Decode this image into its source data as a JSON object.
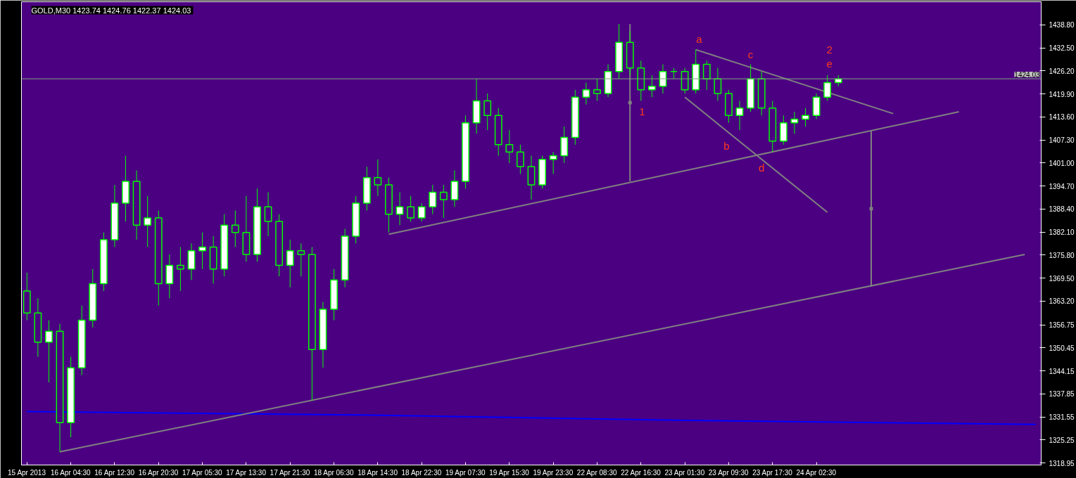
{
  "chart_data": {
    "type": "candlestick",
    "title": "GOLD,M30  1423.74 1424.76 1422.37 1424.03",
    "color": "#00ff00",
    "categories": [
      "15 Apr 2013",
      null,
      null,
      null,
      "16 Apr 04:30",
      null,
      null,
      null,
      "16 Apr 12:30",
      null,
      null,
      null,
      "16 Apr 20:30",
      null,
      null,
      null,
      "17 Apr 05:30",
      null,
      null,
      null,
      "17 Apr 13:30",
      null,
      null,
      null,
      "17 Apr 21:30",
      null,
      null,
      null,
      "18 Apr 06:30",
      null,
      null,
      null,
      "18 Apr 14:30",
      null,
      null,
      null,
      "18 Apr 22:30",
      null,
      null,
      null,
      "19 Apr 07:30",
      null,
      null,
      null,
      "19 Apr 15:30",
      null,
      null,
      null,
      "19 Apr 23:30",
      null,
      null,
      null,
      "22 Apr 08:30",
      null,
      null,
      null,
      "22 Apr 16:30",
      null,
      null,
      null,
      "23 Apr 01:30",
      null,
      null,
      null,
      "23 Apr 09:30",
      null,
      null,
      null,
      "23 Apr 17:30",
      null,
      null,
      null,
      "24 Apr 02:30",
      null,
      null,
      null,
      null,
      null,
      null,
      null,
      null,
      null,
      null,
      null,
      null,
      null,
      null,
      null,
      null,
      null,
      null,
      null,
      null
    ],
    "ohlc": [
      [
        1366,
        1371,
        1358,
        1360
      ],
      [
        1360,
        1364,
        1348,
        1352
      ],
      [
        1352,
        1358,
        1341,
        1355
      ],
      [
        1355,
        1357,
        1322,
        1330
      ],
      [
        1330,
        1348,
        1326,
        1345
      ],
      [
        1345,
        1362,
        1343,
        1358
      ],
      [
        1358,
        1372,
        1356,
        1368
      ],
      [
        1368,
        1382,
        1366,
        1380
      ],
      [
        1380,
        1395,
        1378,
        1390
      ],
      [
        1390,
        1403,
        1385,
        1396
      ],
      [
        1396,
        1399,
        1380,
        1384
      ],
      [
        1384,
        1392,
        1378,
        1386
      ],
      [
        1386,
        1388,
        1362,
        1368
      ],
      [
        1368,
        1376,
        1364,
        1373
      ],
      [
        1373,
        1378,
        1366,
        1372
      ],
      [
        1372,
        1379,
        1369,
        1377
      ],
      [
        1377,
        1382,
        1372,
        1378
      ],
      [
        1378,
        1381,
        1368,
        1372
      ],
      [
        1372,
        1387,
        1370,
        1384
      ],
      [
        1384,
        1388,
        1378,
        1382
      ],
      [
        1382,
        1392,
        1374,
        1376
      ],
      [
        1376,
        1394,
        1374,
        1389
      ],
      [
        1389,
        1393,
        1381,
        1385
      ],
      [
        1385,
        1387,
        1370,
        1373
      ],
      [
        1373,
        1380,
        1367,
        1377
      ],
      [
        1377,
        1379,
        1370,
        1376
      ],
      [
        1376,
        1378,
        1336,
        1350
      ],
      [
        1350,
        1363,
        1345,
        1361
      ],
      [
        1361,
        1372,
        1358,
        1369
      ],
      [
        1369,
        1383,
        1367,
        1381
      ],
      [
        1381,
        1392,
        1379,
        1390
      ],
      [
        1390,
        1400,
        1388,
        1397
      ],
      [
        1397,
        1402,
        1392,
        1395
      ],
      [
        1395,
        1397,
        1382,
        1387
      ],
      [
        1387,
        1393,
        1384,
        1389
      ],
      [
        1389,
        1392,
        1385,
        1386
      ],
      [
        1386,
        1390,
        1385,
        1389
      ],
      [
        1389,
        1395,
        1387,
        1393
      ],
      [
        1393,
        1395,
        1386,
        1391
      ],
      [
        1391,
        1399,
        1389,
        1396
      ],
      [
        1396,
        1414,
        1394,
        1412
      ],
      [
        1412,
        1424,
        1409,
        1418
      ],
      [
        1418,
        1420,
        1410,
        1414
      ],
      [
        1414,
        1416,
        1403,
        1406
      ],
      [
        1406,
        1410,
        1401,
        1404
      ],
      [
        1404,
        1406,
        1398,
        1400
      ],
      [
        1400,
        1403,
        1391,
        1395
      ],
      [
        1395,
        1403,
        1394,
        1402
      ],
      [
        1402,
        1404,
        1398,
        1403
      ],
      [
        1403,
        1411,
        1401,
        1408
      ],
      [
        1408,
        1421,
        1406,
        1419
      ],
      [
        1419,
        1423,
        1417,
        1421
      ],
      [
        1421,
        1424,
        1418,
        1420
      ],
      [
        1420,
        1428,
        1419,
        1426
      ],
      [
        1426,
        1439,
        1424,
        1434
      ],
      [
        1434,
        1437,
        1425,
        1427
      ],
      [
        1427,
        1429,
        1418,
        1421
      ],
      [
        1421,
        1425,
        1419,
        1422
      ],
      [
        1422,
        1428,
        1420,
        1426
      ],
      [
        1426,
        1427,
        1424,
        1426
      ],
      [
        1426,
        1427,
        1420,
        1421
      ],
      [
        1421,
        1432,
        1420,
        1428
      ],
      [
        1428,
        1429,
        1421,
        1424
      ],
      [
        1424,
        1427,
        1418,
        1420
      ],
      [
        1420,
        1421,
        1412,
        1414
      ],
      [
        1414,
        1418,
        1410,
        1416
      ],
      [
        1416,
        1428,
        1415,
        1424
      ],
      [
        1424,
        1426,
        1414,
        1416
      ],
      [
        1416,
        1418,
        1404,
        1407
      ],
      [
        1407,
        1414,
        1406,
        1412
      ],
      [
        1412,
        1415,
        1409,
        1413
      ],
      [
        1413,
        1416,
        1411,
        1414
      ],
      [
        1414,
        1420,
        1413,
        1419
      ],
      [
        1419,
        1425,
        1418,
        1423
      ],
      [
        1423,
        1425,
        1422,
        1424
      ],
      null,
      null,
      null,
      null,
      null,
      null,
      null,
      null,
      null,
      null,
      null,
      null,
      null,
      null,
      null,
      null,
      null,
      null
    ],
    "series": [
      {
        "type": "line",
        "color": "#0000ff",
        "values": [
          1333,
          null,
          null,
          null,
          null,
          null,
          null,
          null,
          null,
          null,
          null,
          null,
          null,
          null,
          null,
          null,
          null,
          null,
          null,
          null,
          null,
          null,
          null,
          null,
          null,
          null,
          null,
          null,
          null,
          null,
          1332.1,
          null,
          null,
          null,
          null,
          null,
          null,
          null,
          null,
          null,
          null,
          null,
          null,
          null,
          null,
          null,
          null,
          null,
          null,
          null,
          null,
          null,
          null,
          null,
          null,
          null,
          null,
          null,
          null,
          null,
          1330.6,
          null,
          null,
          null,
          null,
          null,
          null,
          null,
          null,
          null,
          null,
          null,
          null,
          null,
          null,
          null,
          null,
          null,
          null,
          null,
          null,
          null,
          null,
          null,
          null,
          null,
          null,
          null,
          null,
          null,
          null,
          null,
          1329.5
        ]
      },
      {
        "type": "line",
        "color": "#808080",
        "values": [
          null,
          null,
          null,
          1322,
          null,
          null,
          null,
          null,
          null,
          null,
          null,
          null,
          null,
          null,
          null,
          null,
          null,
          null,
          null,
          null,
          null,
          null,
          null,
          null,
          null,
          null,
          null,
          null,
          null,
          null,
          null,
          null,
          null,
          null,
          null,
          null,
          null,
          null,
          null,
          null,
          null,
          null,
          null,
          null,
          null,
          null,
          null,
          null,
          null,
          null,
          null,
          null,
          null,
          null,
          null,
          null,
          null,
          null,
          null,
          null,
          null,
          null,
          null,
          null,
          null,
          null,
          null,
          null,
          null,
          null,
          null,
          null,
          null,
          null,
          null,
          null,
          null,
          null,
          null,
          null,
          null,
          null,
          null,
          null,
          null,
          null,
          null,
          null,
          null,
          null,
          null,
          1376,
          null
        ]
      },
      {
        "type": "line",
        "color": "#808080",
        "values": [
          null,
          null,
          null,
          null,
          null,
          null,
          null,
          null,
          null,
          null,
          null,
          null,
          null,
          null,
          null,
          null,
          null,
          null,
          null,
          null,
          null,
          null,
          null,
          null,
          null,
          null,
          null,
          null,
          null,
          null,
          null,
          null,
          null,
          1381.5,
          null,
          null,
          null,
          null,
          null,
          null,
          null,
          null,
          null,
          null,
          null,
          null,
          null,
          null,
          null,
          null,
          null,
          null,
          null,
          null,
          null,
          null,
          null,
          null,
          null,
          null,
          null,
          null,
          null,
          null,
          null,
          null,
          null,
          null,
          null,
          null,
          null,
          null,
          null,
          null,
          null,
          null,
          null,
          null,
          null,
          null,
          null,
          null,
          null,
          null,
          null,
          1415,
          null,
          null,
          null,
          null,
          null,
          null,
          null
        ]
      },
      {
        "type": "line",
        "color": "#808080",
        "values": [
          null,
          null,
          null,
          null,
          null,
          null,
          null,
          null,
          null,
          null,
          null,
          null,
          null,
          null,
          null,
          null,
          null,
          null,
          null,
          null,
          null,
          null,
          null,
          null,
          null,
          null,
          null,
          null,
          null,
          null,
          null,
          null,
          null,
          null,
          null,
          null,
          null,
          null,
          null,
          null,
          null,
          null,
          null,
          null,
          null,
          null,
          null,
          null,
          null,
          null,
          null,
          null,
          null,
          null,
          null,
          null,
          null,
          null,
          null,
          null,
          null,
          1432,
          null,
          null,
          null,
          null,
          null,
          null,
          null,
          null,
          null,
          null,
          null,
          null,
          null,
          null,
          null,
          null,
          null,
          1414.5,
          null,
          null,
          null,
          null,
          null,
          null,
          null,
          null,
          null,
          null,
          null,
          null,
          null
        ]
      },
      {
        "type": "line",
        "color": "#808080",
        "values": [
          null,
          null,
          null,
          null,
          null,
          null,
          null,
          null,
          null,
          null,
          null,
          null,
          null,
          null,
          null,
          null,
          null,
          null,
          null,
          null,
          null,
          null,
          null,
          null,
          null,
          null,
          null,
          null,
          null,
          null,
          null,
          null,
          null,
          null,
          null,
          null,
          null,
          null,
          null,
          null,
          null,
          null,
          null,
          null,
          null,
          null,
          null,
          null,
          null,
          null,
          null,
          null,
          null,
          null,
          null,
          null,
          null,
          null,
          null,
          null,
          1419,
          null,
          null,
          null,
          null,
          null,
          null,
          null,
          null,
          null,
          null,
          null,
          null,
          1387.5,
          null,
          null,
          null,
          null,
          null,
          null,
          null,
          null,
          null,
          null,
          null,
          null,
          null,
          null,
          null,
          null,
          null,
          null,
          null
        ]
      },
      {
        "type": "scatter",
        "color": "#808080",
        "marker": "square",
        "values": [
          null,
          null,
          null,
          null,
          null,
          null,
          null,
          null,
          null,
          null,
          null,
          null,
          null,
          null,
          null,
          null,
          null,
          null,
          null,
          null,
          null,
          null,
          null,
          null,
          null,
          null,
          null,
          null,
          null,
          null,
          null,
          null,
          null,
          null,
          null,
          null,
          null,
          null,
          null,
          null,
          null,
          null,
          null,
          null,
          null,
          null,
          null,
          null,
          null,
          null,
          null,
          null,
          null,
          null,
          null,
          1417.5,
          null,
          null,
          null,
          null,
          null,
          null,
          null,
          null,
          null,
          null,
          null,
          null,
          null,
          null,
          null,
          null,
          null,
          null,
          null,
          null,
          null,
          1388.5,
          null,
          null,
          null,
          null,
          null,
          null,
          null,
          null,
          null,
          null,
          null,
          null,
          null,
          null,
          null
        ],
        "errors": [
          null,
          null,
          null,
          null,
          null,
          null,
          null,
          null,
          null,
          null,
          null,
          null,
          null,
          null,
          null,
          null,
          null,
          null,
          null,
          null,
          null,
          null,
          null,
          null,
          null,
          null,
          null,
          null,
          null,
          null,
          null,
          null,
          null,
          null,
          null,
          null,
          null,
          null,
          null,
          null,
          null,
          null,
          null,
          null,
          null,
          null,
          null,
          null,
          null,
          null,
          null,
          null,
          null,
          null,
          null,
          [
            1396,
            1439
          ],
          null,
          null,
          null,
          null,
          null,
          null,
          null,
          null,
          null,
          null,
          null,
          null,
          null,
          null,
          null,
          null,
          null,
          null,
          null,
          null,
          null,
          [
            1367.2,
            1409.8
          ],
          null,
          null,
          null,
          null,
          null,
          null,
          null,
          null,
          null,
          null,
          null,
          null,
          null,
          null,
          null
        ]
      }
    ],
    "ref_lines": [
      {
        "axis": "y",
        "value": 1424.03,
        "label": "1424.03",
        "color": "#7fa87f"
      }
    ],
    "annotations": [
      "a",
      "1",
      "b",
      "c",
      "d",
      "2",
      "e"
    ],
    "ylim": [
      1318.4,
      1445.1
    ],
    "yticks": [
      {
        "value": 1318.95,
        "label": "1318.95"
      },
      {
        "value": 1325.25,
        "label": "1325.25"
      },
      {
        "value": 1331.55,
        "label": "1331.55"
      },
      {
        "value": 1337.85,
        "label": "1337.85"
      },
      {
        "value": 1344.15,
        "label": "1344.15"
      },
      {
        "value": 1350.45,
        "label": "1350.45"
      },
      {
        "value": 1356.75,
        "label": "1356.75"
      },
      {
        "value": 1363.2,
        "label": "1363.20"
      },
      {
        "value": 1369.5,
        "label": "1369.50"
      },
      {
        "value": 1375.8,
        "label": "1375.80"
      },
      {
        "value": 1382.1,
        "label": "1382.10"
      },
      {
        "value": 1388.4,
        "label": "1388.40"
      },
      {
        "value": 1394.7,
        "label": "1394.70"
      },
      {
        "value": 1401,
        "label": "1401.00"
      },
      {
        "value": 1407.3,
        "label": "1407.30"
      },
      {
        "value": 1413.6,
        "label": "1413.60"
      },
      {
        "value": 1419.9,
        "label": "1419.90"
      },
      {
        "value": 1426.2,
        "label": "1426.20"
      },
      {
        "value": 1432.5,
        "label": "1432.50"
      },
      {
        "value": 1438.8,
        "label": "1438.80"
      }
    ],
    "grid": false
  }
}
